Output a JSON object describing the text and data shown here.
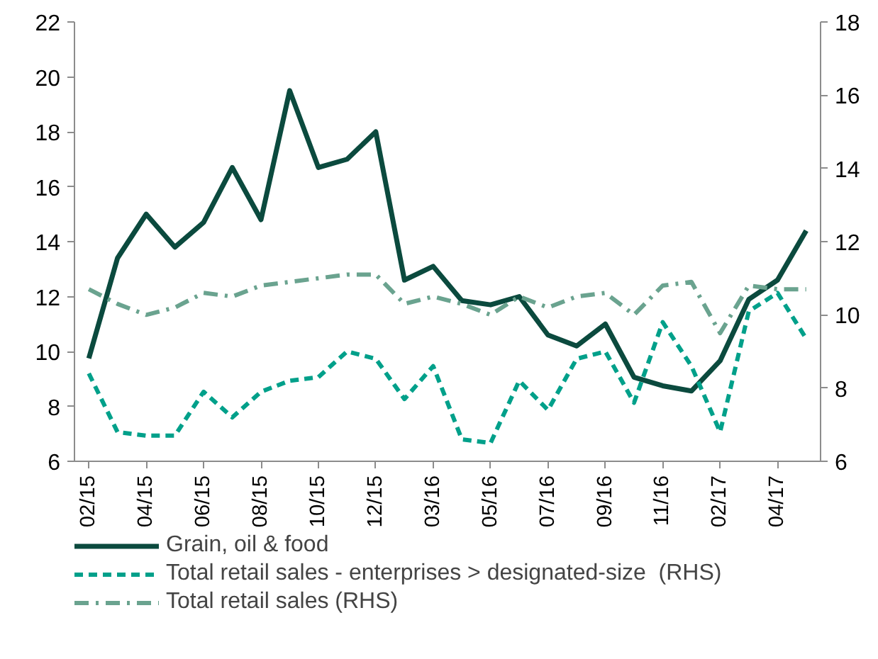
{
  "chart_data": {
    "type": "line",
    "categories": [
      "02/15",
      null,
      "04/15",
      null,
      "06/15",
      null,
      "08/15",
      null,
      "10/15",
      null,
      "12/15",
      null,
      "03/16",
      null,
      "05/16",
      null,
      "07/16",
      null,
      "09/16",
      null,
      "11/16",
      null,
      "02/17",
      null,
      "04/17",
      null
    ],
    "series": [
      {
        "name": "Grain, oil & food",
        "color": "#0b4a3e",
        "line_style": "solid",
        "values": [
          9.75,
          13.4,
          15.0,
          13.8,
          14.7,
          16.7,
          14.8,
          19.5,
          16.7,
          17.0,
          18.0,
          12.6,
          13.1,
          11.85,
          11.7,
          12.0,
          10.6,
          10.2,
          11.0,
          9.06,
          8.75,
          8.56,
          9.66,
          11.9,
          12.6,
          14.4
        ]
      },
      {
        "name": "Total retail sales - enterprises > designated-size  (RHS)",
        "color": "#00a08a",
        "line_style": "dashed",
        "axis": "y2",
        "values": [
          8.4,
          6.8,
          6.7,
          6.7,
          7.9,
          7.2,
          7.9,
          8.2,
          8.3,
          9.0,
          8.8,
          7.7,
          8.6,
          6.6,
          6.5,
          8.2,
          7.4,
          8.8,
          9.0,
          7.6,
          9.8,
          8.6,
          6.8,
          10.1,
          10.6,
          9.35
        ]
      },
      {
        "name": "Total retail sales (RHS)",
        "color": "#6aa38f",
        "line_style": "dashdot",
        "axis": "y2",
        "values": [
          10.7,
          10.3,
          10.0,
          10.2,
          10.6,
          10.5,
          10.8,
          10.9,
          11.0,
          11.1,
          11.1,
          10.3,
          10.5,
          10.3,
          10.0,
          10.5,
          10.2,
          10.5,
          10.6,
          10.0,
          10.8,
          10.9,
          9.5,
          10.8,
          10.7,
          10.7
        ]
      }
    ],
    "ylim": [
      6,
      22
    ],
    "yticks": [
      6,
      8,
      10,
      12,
      14,
      16,
      18,
      20,
      22
    ],
    "y2lim": [
      6,
      18
    ],
    "y2ticks": [
      6,
      8,
      10,
      12,
      14,
      16,
      18
    ],
    "grid": false,
    "legend": "bottom",
    "marker": "none"
  }
}
